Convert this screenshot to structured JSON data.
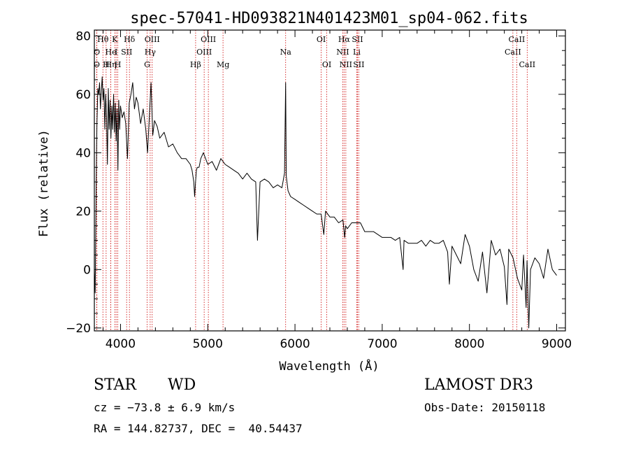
{
  "chart_data": {
    "type": "line",
    "title": "spec-57041-HD093821N401423M01_sp04-062.fits",
    "xlabel": "Wavelength (Å)",
    "ylabel": "Flux (relative)",
    "xlim": [
      3700,
      9100
    ],
    "ylim": [
      -21,
      82
    ],
    "xticks": [
      4000,
      5000,
      6000,
      7000,
      8000,
      9000
    ],
    "yticks": [
      -20,
      0,
      20,
      40,
      60,
      80
    ],
    "line_color": "#000000",
    "marker_color": "#cc0000",
    "series": [
      {
        "x": [
          3700,
          3710,
          3720,
          3730,
          3740,
          3750,
          3760,
          3770,
          3780,
          3790,
          3800,
          3810,
          3820,
          3830,
          3840,
          3850,
          3860,
          3870,
          3880,
          3890,
          3900,
          3910,
          3920,
          3930,
          3940,
          3950,
          3960,
          3970,
          3980,
          3990,
          4000,
          4020,
          4040,
          4060,
          4080,
          4100,
          4120,
          4140,
          4160,
          4180,
          4200,
          4230,
          4260,
          4290,
          4310,
          4330,
          4350,
          4370,
          4390,
          4420,
          4450,
          4500,
          4550,
          4600,
          4650,
          4700,
          4750,
          4800,
          4820,
          4840,
          4850,
          4860,
          4870,
          4880,
          4900,
          4920,
          4950,
          5000,
          5050,
          5100,
          5150,
          5200,
          5250,
          5300,
          5350,
          5400,
          5450,
          5500,
          5550,
          5570,
          5600,
          5650,
          5700,
          5750,
          5800,
          5850,
          5880,
          5893,
          5900,
          5920,
          5950,
          6000,
          6050,
          6100,
          6150,
          6200,
          6250,
          6300,
          6330,
          6350,
          6400,
          6450,
          6500,
          6550,
          6570,
          6580,
          6600,
          6650,
          6700,
          6750,
          6800,
          6850,
          6900,
          6950,
          7000,
          7050,
          7100,
          7150,
          7200,
          7240,
          7250,
          7300,
          7350,
          7400,
          7450,
          7500,
          7550,
          7600,
          7650,
          7700,
          7750,
          7770,
          7800,
          7850,
          7900,
          7950,
          8000,
          8050,
          8100,
          8150,
          8200,
          8250,
          8300,
          8350,
          8400,
          8430,
          8450,
          8500,
          8550,
          8600,
          8620,
          8650,
          8660,
          8680,
          8700,
          8750,
          8800,
          8850,
          8900,
          8950,
          9000
        ],
        "y": [
          0,
          -8,
          26,
          50,
          62,
          60,
          64,
          55,
          61,
          66,
          58,
          62,
          48,
          60,
          52,
          36,
          62,
          48,
          58,
          45,
          56,
          48,
          60,
          47,
          57,
          44,
          55,
          34,
          58,
          48,
          56,
          52,
          54,
          50,
          38,
          57,
          60,
          64,
          55,
          59,
          57,
          50,
          55,
          48,
          40,
          52,
          64,
          46,
          51,
          49,
          45,
          47,
          42,
          43,
          40,
          38,
          38,
          36,
          34,
          30,
          25,
          30,
          34,
          35,
          35,
          38,
          40,
          36,
          37,
          34,
          38,
          36,
          35,
          34,
          33,
          31,
          33,
          31,
          30,
          10,
          30,
          31,
          30,
          28,
          29,
          28,
          33,
          64,
          32,
          27,
          25,
          24,
          23,
          22,
          21,
          20,
          19,
          19,
          12,
          20,
          18,
          18,
          16,
          17,
          11,
          15,
          14,
          16,
          16,
          16,
          13,
          13,
          13,
          12,
          11,
          11,
          11,
          10,
          11,
          0,
          10,
          9,
          9,
          9,
          10,
          8,
          10,
          9,
          9,
          10,
          6,
          -5,
          8,
          5,
          2,
          12,
          8,
          0,
          -4,
          6,
          -8,
          10,
          5,
          7,
          1,
          -12,
          7,
          4,
          -3,
          -7,
          5,
          -13,
          3,
          -20,
          0,
          4,
          2,
          -3,
          7,
          0,
          -2
        ]
      }
    ],
    "lines": [
      {
        "label": "O",
        "x": 3727,
        "row": 3
      },
      {
        "label": "O",
        "x": 3729,
        "row": 2
      },
      {
        "label": "Hθ",
        "x": 3798,
        "row": 1
      },
      {
        "label": "H",
        "x": 3835,
        "row": 3
      },
      {
        "label": "He",
        "x": 3889,
        "row": 2
      },
      {
        "label": "Hη",
        "x": 3889,
        "row": 3
      },
      {
        "label": "K",
        "x": 3934,
        "row": 1
      },
      {
        "label": "I",
        "x": 3950,
        "row": 2
      },
      {
        "label": "H",
        "x": 3969,
        "row": 3
      },
      {
        "label": "SII",
        "x": 4070,
        "row": 2
      },
      {
        "label": "Hδ",
        "x": 4102,
        "row": 1
      },
      {
        "label": "G",
        "x": 4305,
        "row": 3
      },
      {
        "label": "Hγ",
        "x": 4340,
        "row": 2
      },
      {
        "label": "OIII",
        "x": 4363,
        "row": 1
      },
      {
        "label": "Hβ",
        "x": 4861,
        "row": 3
      },
      {
        "label": "OIII",
        "x": 4959,
        "row": 2
      },
      {
        "label": "OIII",
        "x": 5007,
        "row": 1
      },
      {
        "label": "Mg",
        "x": 5175,
        "row": 3
      },
      {
        "label": "Na",
        "x": 5893,
        "row": 2
      },
      {
        "label": "OI",
        "x": 6300,
        "row": 1
      },
      {
        "label": "OI",
        "x": 6364,
        "row": 3
      },
      {
        "label": "NII",
        "x": 6548,
        "row": 2
      },
      {
        "label": "NII",
        "x": 6583,
        "row": 3
      },
      {
        "label": "Hα",
        "x": 6563,
        "row": 1
      },
      {
        "label": "Li",
        "x": 6708,
        "row": 2
      },
      {
        "label": "SII",
        "x": 6716,
        "row": 1
      },
      {
        "label": "SII",
        "x": 6731,
        "row": 3
      },
      {
        "label": "CaII",
        "x": 8498,
        "row": 2
      },
      {
        "label": "CaII",
        "x": 8542,
        "row": 1
      },
      {
        "label": "CaII",
        "x": 8662,
        "row": 3
      }
    ]
  },
  "info": {
    "class": "STAR",
    "subclass": "WD",
    "survey": "LAMOST DR3",
    "cz": "cz = −73.8 ± 6.9 km/s",
    "obs_date": "Obs-Date: 20150118",
    "radec": "RA = 144.82737, DEC =  40.54437"
  }
}
